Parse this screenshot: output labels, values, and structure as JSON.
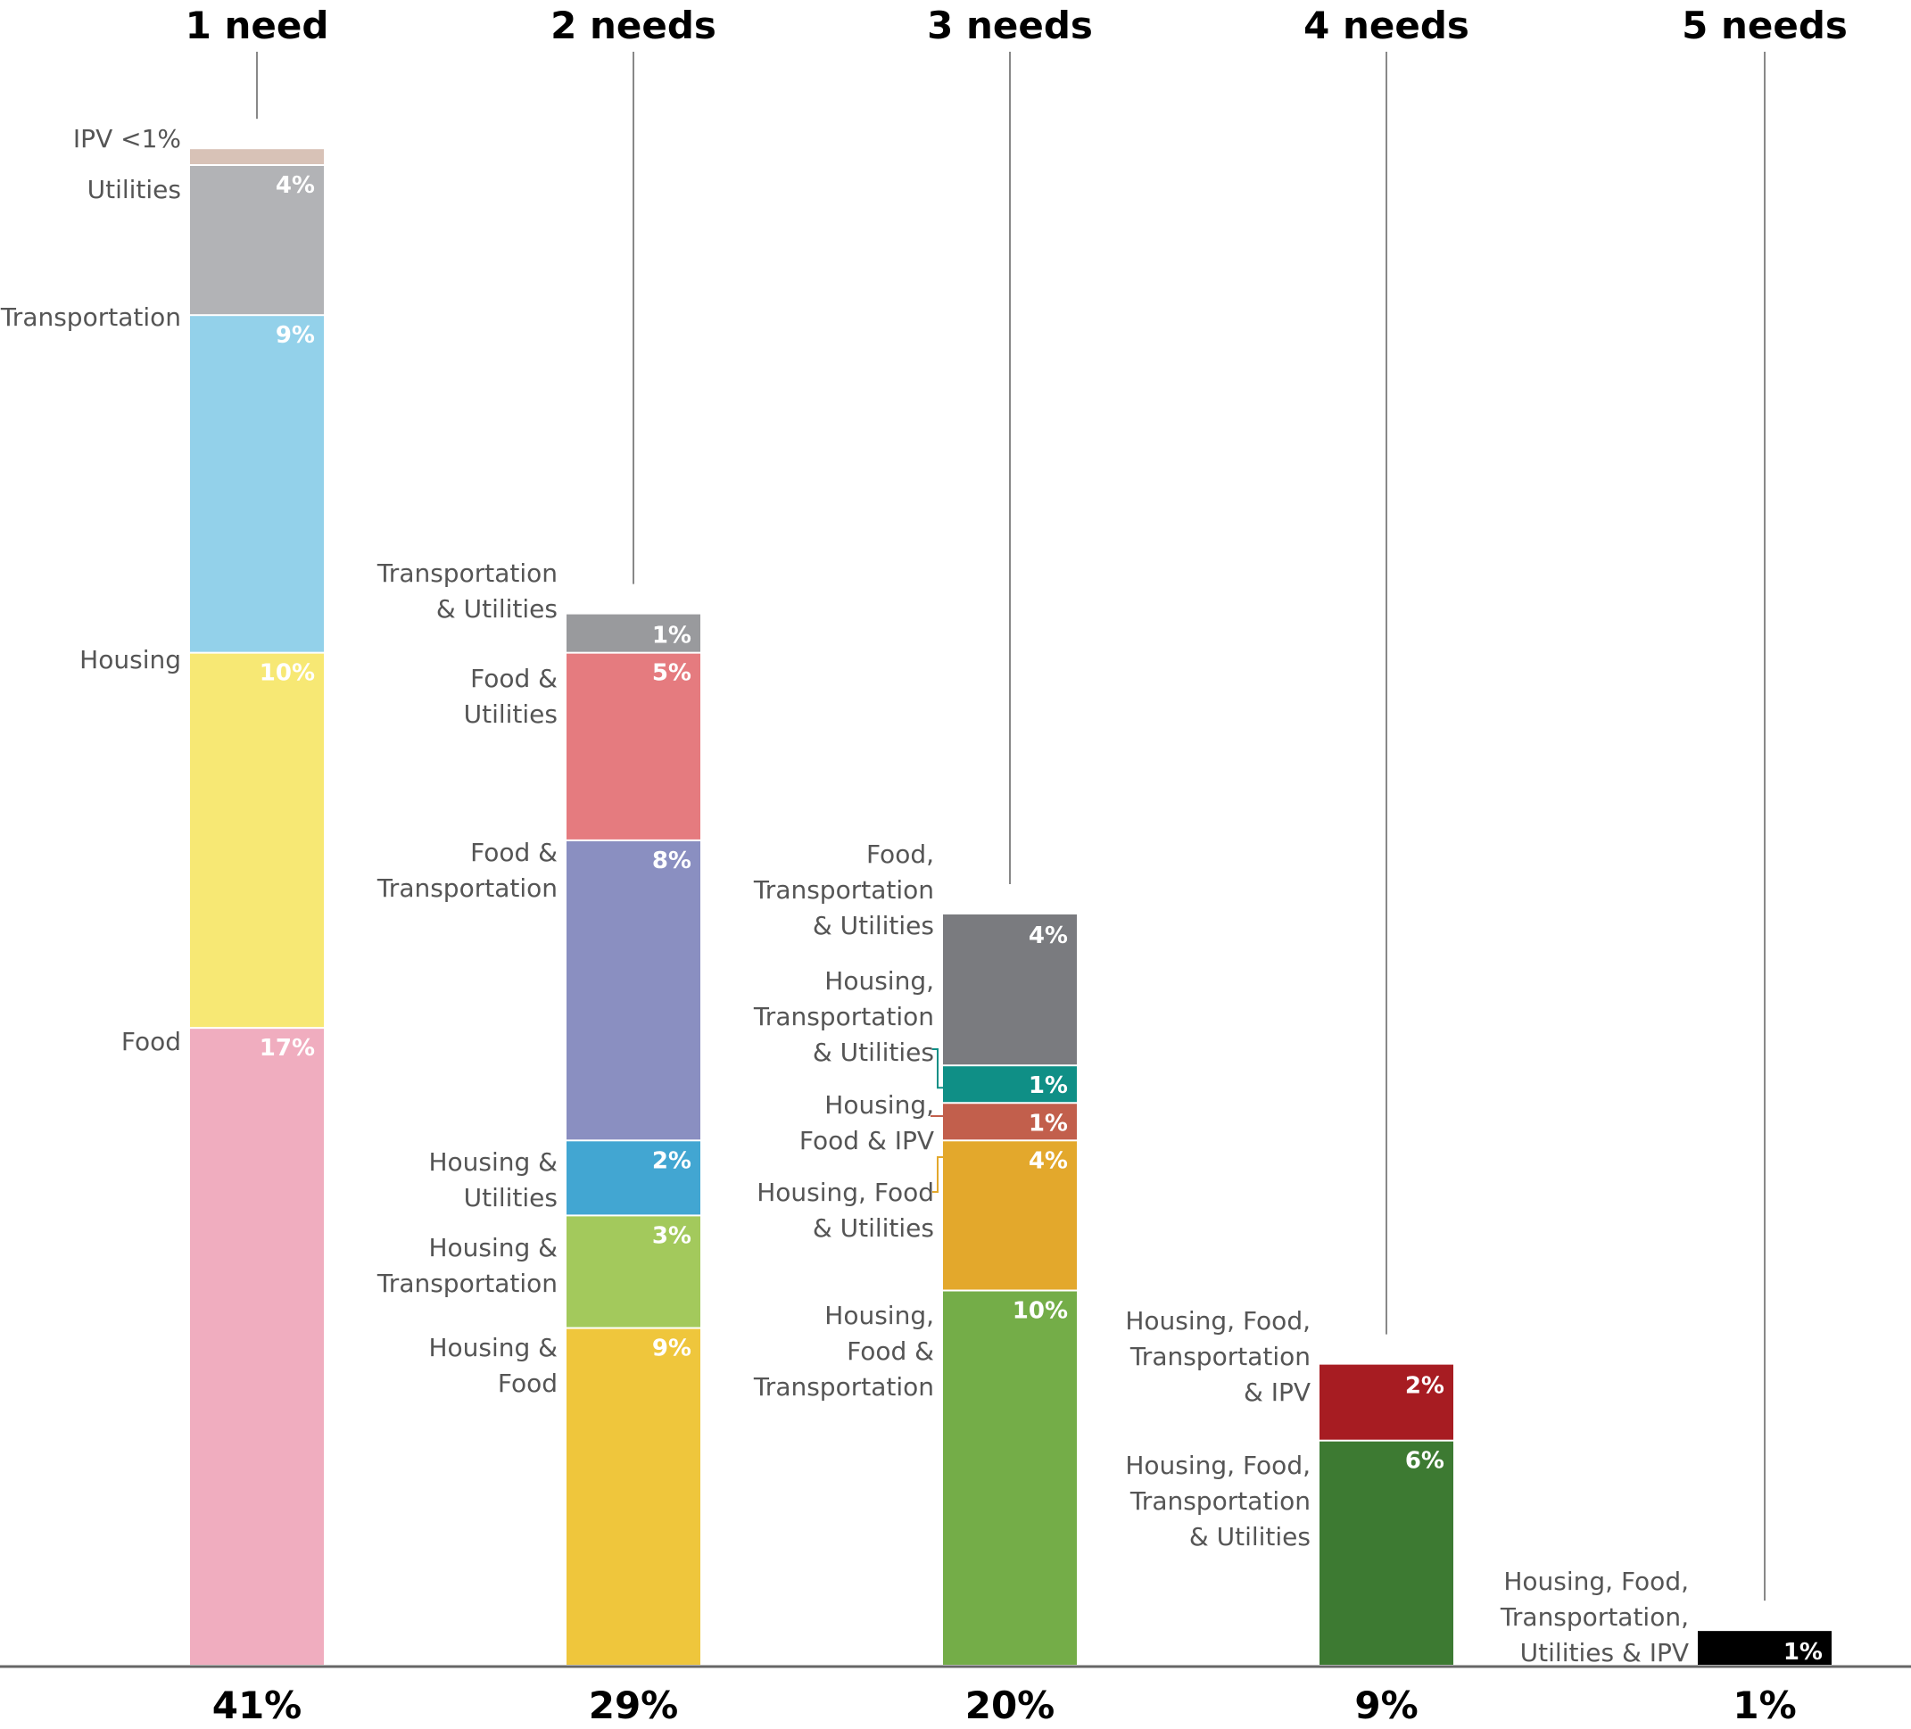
{
  "chart_data": {
    "type": "bar",
    "stacked": true,
    "title": "",
    "xlabel": "",
    "ylabel": "",
    "ylim": [
      0,
      41
    ],
    "grid": false,
    "legend": "none (inline labels left of each segment)",
    "categories": [
      "1 need",
      "2 needs",
      "3 needs",
      "4 needs",
      "5 needs"
    ],
    "totals": [
      "41%",
      "29%",
      "20%",
      "9%",
      "1%"
    ],
    "bars": [
      {
        "category": "1 need",
        "total": 41,
        "segments": [
          {
            "name": "Food",
            "value": 17,
            "label": "17%",
            "color": "#f0adbf"
          },
          {
            "name": "Housing",
            "value": 10,
            "label": "10%",
            "color": "#f7e874"
          },
          {
            "name": "Transportation",
            "value": 9,
            "label": "9%",
            "color": "#93d1ea"
          },
          {
            "name": "Utilities",
            "value": 4,
            "label": "4%",
            "color": "#b2b3b6"
          },
          {
            "name": "IPV",
            "value": 0.4,
            "label": "",
            "side_label": "IPV <1%",
            "color": "#d8c2b7"
          }
        ]
      },
      {
        "category": "2 needs",
        "total": 29,
        "segments": [
          {
            "name": "Housing & Food",
            "value": 9,
            "label": "9%",
            "color": "#efc63c"
          },
          {
            "name": "Housing & Transportation",
            "value": 3,
            "label": "3%",
            "color": "#a3c95c"
          },
          {
            "name": "Housing & Utilities",
            "value": 2,
            "label": "2%",
            "color": "#42a6d2"
          },
          {
            "name": "Food & Transportation",
            "value": 8,
            "label": "8%",
            "color": "#8a8fc1"
          },
          {
            "name": "Food & Utilities",
            "value": 5,
            "label": "5%",
            "color": "#e57b7f"
          },
          {
            "name": "Transportation & Utilities",
            "value": 1,
            "label": "1%",
            "color": "#999a9d"
          }
        ]
      },
      {
        "category": "3 needs",
        "total": 20,
        "segments": [
          {
            "name": "Housing, Food & Transportation",
            "value": 10,
            "label": "10%",
            "color": "#74ad48"
          },
          {
            "name": "Housing, Food & Utilities",
            "value": 4,
            "label": "4%",
            "color": "#e3a82c"
          },
          {
            "name": "Housing, Food & IPV",
            "value": 1,
            "label": "1%",
            "color": "#c25f4c"
          },
          {
            "name": "Housing, Transportation & Utilities",
            "value": 1,
            "label": "1%",
            "color": "#0f8f86"
          },
          {
            "name": "Food, Transportation & Utilities",
            "value": 4,
            "label": "4%",
            "color": "#7a7b7f"
          }
        ]
      },
      {
        "category": "4 needs",
        "total": 9,
        "segments": [
          {
            "name": "Housing, Food, Transportation & Utilities",
            "value": 6,
            "label": "6%",
            "color": "#3d7a32"
          },
          {
            "name": "Housing, Food, Transportation & IPV",
            "value": 2,
            "label": "2%",
            "color": "#a71c22"
          }
        ]
      },
      {
        "category": "5 needs",
        "total": 1,
        "segments": [
          {
            "name": "Housing, Food, Transportation, Utilities & IPV",
            "value": 0.9,
            "label": "1%",
            "color": "#000000"
          }
        ]
      }
    ],
    "side_labels": [
      [
        [
          "Food"
        ],
        [
          "Housing"
        ],
        [
          "Transportation"
        ],
        [
          "Utilities"
        ],
        [
          "IPV <1%"
        ]
      ],
      [
        [
          "Housing &",
          "Food"
        ],
        [
          "Housing &",
          "Transportation"
        ],
        [
          "Housing &",
          "Utilities"
        ],
        [
          "Food &",
          "Transportation"
        ],
        [
          "Food &",
          "Utilities"
        ],
        [
          "Transportation",
          "& Utilities"
        ]
      ],
      [
        [
          "Housing,",
          "Food &",
          "Transportation"
        ],
        [
          "Housing, Food",
          "& Utilities"
        ],
        [
          "Housing,",
          "Food & IPV"
        ],
        [
          "Housing,",
          "Transportation",
          "& Utilities"
        ],
        [
          "Food,",
          "Transportation",
          "& Utilities"
        ]
      ],
      [
        [
          "Housing, Food,",
          "Transportation",
          "& Utilities"
        ],
        [
          "Housing, Food,",
          "Transportation",
          "& IPV"
        ]
      ],
      [
        [
          "Housing, Food,",
          "Transportation,",
          "Utilities & IPV"
        ]
      ]
    ]
  }
}
